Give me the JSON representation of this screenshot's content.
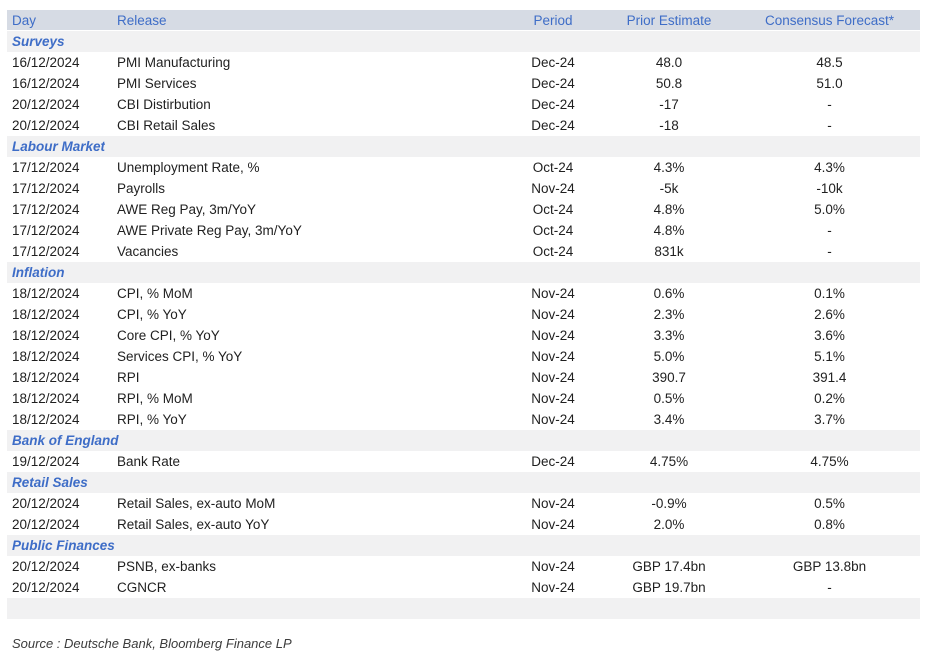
{
  "colors": {
    "header_bg": "#d6dbe4",
    "section_bg": "#f1f1f2",
    "accent_blue": "#3e6dc7",
    "body_text": "#1f1f1f",
    "source_text": "#3c3c3c"
  },
  "table": {
    "columns": [
      "Day",
      "Release",
      "Period",
      "Prior Estimate",
      "Consensus Forecast*"
    ],
    "sections": [
      {
        "label": "Surveys",
        "rows": [
          {
            "day": "16/12/2024",
            "release": "PMI Manufacturing",
            "period": "Dec-24",
            "prior": "48.0",
            "consensus": "48.5"
          },
          {
            "day": "16/12/2024",
            "release": "PMI Services",
            "period": "Dec-24",
            "prior": "50.8",
            "consensus": "51.0"
          },
          {
            "day": "20/12/2024",
            "release": "CBI Distirbution",
            "period": "Dec-24",
            "prior": "-17",
            "consensus": "-"
          },
          {
            "day": "20/12/2024",
            "release": "CBI Retail Sales",
            "period": "Dec-24",
            "prior": "-18",
            "consensus": "-"
          }
        ]
      },
      {
        "label": "Labour Market",
        "rows": [
          {
            "day": "17/12/2024",
            "release": "Unemployment Rate, %",
            "period": "Oct-24",
            "prior": "4.3%",
            "consensus": "4.3%"
          },
          {
            "day": "17/12/2024",
            "release": "Payrolls",
            "period": "Nov-24",
            "prior": "-5k",
            "consensus": "-10k"
          },
          {
            "day": "17/12/2024",
            "release": "AWE Reg Pay, 3m/YoY",
            "period": "Oct-24",
            "prior": "4.8%",
            "consensus": "5.0%"
          },
          {
            "day": "17/12/2024",
            "release": "AWE Private Reg Pay, 3m/YoY",
            "period": "Oct-24",
            "prior": "4.8%",
            "consensus": "-"
          },
          {
            "day": "17/12/2024",
            "release": "Vacancies",
            "period": "Oct-24",
            "prior": "831k",
            "consensus": "-"
          }
        ]
      },
      {
        "label": "Inflation",
        "rows": [
          {
            "day": "18/12/2024",
            "release": "CPI, % MoM",
            "period": "Nov-24",
            "prior": "0.6%",
            "consensus": "0.1%"
          },
          {
            "day": "18/12/2024",
            "release": "CPI, % YoY",
            "period": "Nov-24",
            "prior": "2.3%",
            "consensus": "2.6%"
          },
          {
            "day": "18/12/2024",
            "release": "Core CPI, % YoY",
            "period": "Nov-24",
            "prior": "3.3%",
            "consensus": "3.6%"
          },
          {
            "day": "18/12/2024",
            "release": "Services CPI, % YoY",
            "period": "Nov-24",
            "prior": "5.0%",
            "consensus": "5.1%"
          },
          {
            "day": "18/12/2024",
            "release": "RPI",
            "period": "Nov-24",
            "prior": "390.7",
            "consensus": "391.4"
          },
          {
            "day": "18/12/2024",
            "release": "RPI, % MoM",
            "period": "Nov-24",
            "prior": "0.5%",
            "consensus": "0.2%"
          },
          {
            "day": "18/12/2024",
            "release": "RPI, % YoY",
            "period": "Nov-24",
            "prior": "3.4%",
            "consensus": "3.7%"
          }
        ]
      },
      {
        "label": "Bank of England",
        "rows": [
          {
            "day": "19/12/2024",
            "release": "Bank Rate",
            "period": "Dec-24",
            "prior": "4.75%",
            "consensus": "4.75%"
          }
        ]
      },
      {
        "label": "Retail Sales",
        "rows": [
          {
            "day": "20/12/2024",
            "release": "Retail Sales, ex-auto MoM",
            "period": "Nov-24",
            "prior": "-0.9%",
            "consensus": "0.5%"
          },
          {
            "day": "20/12/2024",
            "release": "Retail Sales, ex-auto YoY",
            "period": "Nov-24",
            "prior": "2.0%",
            "consensus": "0.8%"
          }
        ]
      },
      {
        "label": "Public Finances",
        "rows": [
          {
            "day": "20/12/2024",
            "release": "PSNB, ex-banks",
            "period": "Nov-24",
            "prior": "GBP 17.4bn",
            "consensus": "GBP 13.8bn"
          },
          {
            "day": "20/12/2024",
            "release": "CGNCR",
            "period": "Nov-24",
            "prior": "GBP 19.7bn",
            "consensus": "-"
          }
        ]
      }
    ]
  },
  "footer": {
    "source": "Source : Deutsche Bank, Bloomberg Finance LP"
  }
}
